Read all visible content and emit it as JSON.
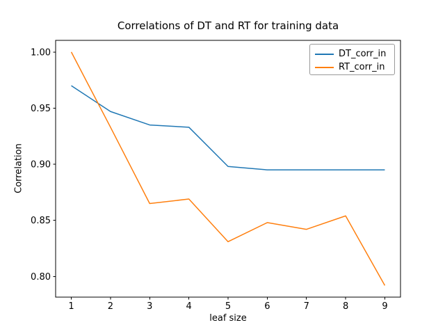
{
  "figure": {
    "background": "#ffffff"
  },
  "chart_data": {
    "type": "line",
    "title": "Correlations of DT and RT for training data",
    "xlabel": "leaf size",
    "ylabel": "Correlation",
    "x": [
      1,
      2,
      3,
      4,
      5,
      6,
      7,
      8,
      9
    ],
    "series": [
      {
        "name": "DT_corr_in",
        "color": "#1f77b4",
        "values": [
          0.97,
          0.947,
          0.935,
          0.933,
          0.898,
          0.895,
          0.895,
          0.895,
          0.895
        ]
      },
      {
        "name": "RT_corr_in",
        "color": "#ff7f0e",
        "values": [
          1.0,
          0.933,
          0.865,
          0.869,
          0.831,
          0.848,
          0.842,
          0.854,
          0.792
        ]
      }
    ],
    "xtick_labels": [
      "1",
      "2",
      "3",
      "4",
      "5",
      "6",
      "7",
      "8",
      "9"
    ],
    "ytick_values": [
      0.8,
      0.85,
      0.9,
      0.95,
      1.0
    ],
    "ytick_labels": [
      "0.80",
      "0.85",
      "0.90",
      "0.95",
      "1.00"
    ],
    "xlim": [
      0.6,
      9.4
    ],
    "ylim": [
      0.7816,
      1.0104
    ],
    "grid": false,
    "legend_position": "upper right",
    "axis_color": "#000000",
    "text_color": "#000000",
    "legend_border_color": "#999999",
    "line_width": 1.5
  }
}
